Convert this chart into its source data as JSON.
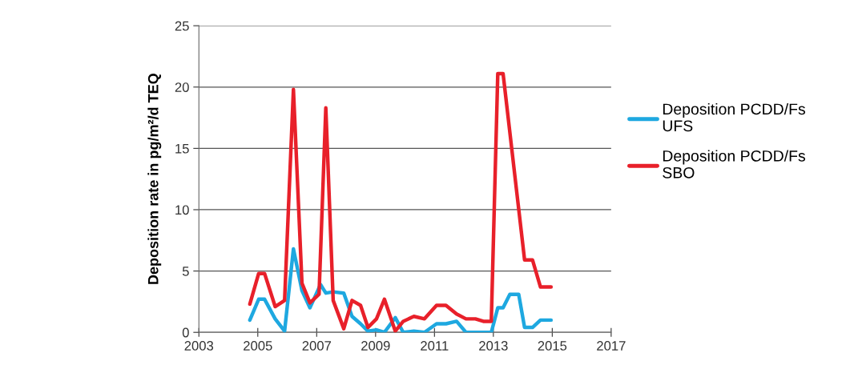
{
  "chart_data": {
    "type": "line",
    "ylabel": "Deposition rate in pg/m²/d TEQ",
    "xlim": [
      2003,
      2017
    ],
    "xticks": [
      2003,
      2005,
      2007,
      2009,
      2011,
      2013,
      2015,
      2017
    ],
    "ylim": [
      0,
      25
    ],
    "yticks": [
      0,
      5,
      10,
      15,
      20,
      25
    ],
    "grid": "y",
    "legend": "right",
    "marker": "none",
    "line_style": "solid",
    "series": [
      {
        "name": "Deposition PCDD/Fs\nUFS",
        "color": "#1ea8e0",
        "x": [
          2004.73,
          2005.03,
          2005.23,
          2005.59,
          2005.91,
          2006.21,
          2006.5,
          2006.77,
          2007.13,
          2007.31,
          2007.56,
          2007.92,
          2008.2,
          2008.49,
          2008.74,
          2009.03,
          2009.3,
          2009.67,
          2009.94,
          2010.3,
          2010.66,
          2011.07,
          2011.39,
          2011.75,
          2012.07,
          2012.39,
          2012.66,
          2012.93,
          2013.15,
          2013.33,
          2013.56,
          2013.86,
          2014.06,
          2014.33,
          2014.6,
          2014.96
        ],
        "values": [
          1.0,
          2.7,
          2.7,
          1.1,
          0.1,
          6.8,
          3.4,
          2.0,
          3.9,
          3.2,
          3.3,
          3.2,
          1.3,
          0.7,
          0.1,
          0.2,
          0.0,
          1.2,
          0.0,
          0.1,
          0.0,
          0.7,
          0.7,
          0.9,
          0.0,
          0.0,
          0.0,
          0.0,
          2.0,
          2.0,
          3.1,
          3.1,
          0.4,
          0.4,
          1.0,
          1.0
        ]
      },
      {
        "name": "Deposition PCDD/Fs\nSBO",
        "color": "#e8202a",
        "x": [
          2004.73,
          2005.03,
          2005.23,
          2005.59,
          2005.91,
          2006.21,
          2006.5,
          2006.77,
          2007.08,
          2007.31,
          2007.56,
          2007.92,
          2008.2,
          2008.49,
          2008.74,
          2009.03,
          2009.3,
          2009.67,
          2009.94,
          2010.3,
          2010.66,
          2011.07,
          2011.39,
          2011.75,
          2012.07,
          2012.39,
          2012.66,
          2012.93,
          2013.15,
          2013.33,
          2014.06,
          2014.33,
          2014.6,
          2014.96
        ],
        "values": [
          2.3,
          4.8,
          4.8,
          2.1,
          2.6,
          19.8,
          4.0,
          2.4,
          3.1,
          18.3,
          2.6,
          0.3,
          2.6,
          2.2,
          0.4,
          1.1,
          2.7,
          0.1,
          0.9,
          1.3,
          1.1,
          2.2,
          2.2,
          1.5,
          1.1,
          1.1,
          0.9,
          0.9,
          21.1,
          21.1,
          5.9,
          5.9,
          3.7,
          3.7
        ]
      }
    ]
  }
}
